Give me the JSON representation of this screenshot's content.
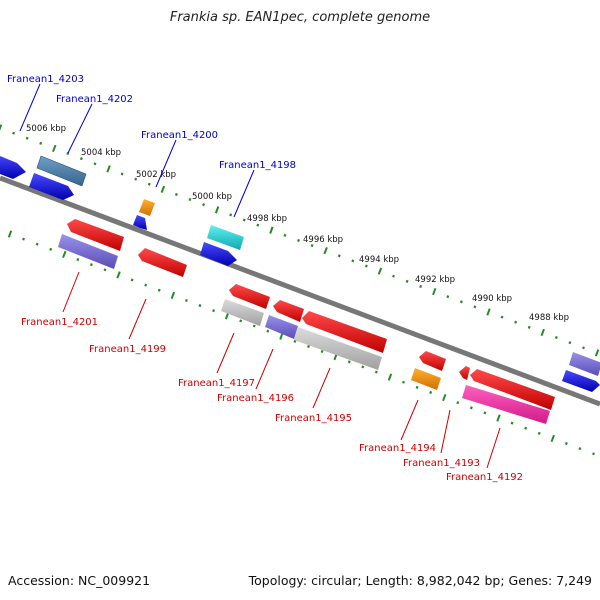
{
  "title": "Frankia sp. EAN1pec, complete genome",
  "footer": {
    "accession": "Accession: NC_009921",
    "summary": "Topology: circular; Length: 8,982,042 bp; Genes: 7,249"
  },
  "colors": {
    "top_label": "#0000cc",
    "bottom_label": "#cc0000",
    "backbone": "#777777",
    "ticks": "#228b22"
  },
  "scale_labels": [
    "5006 kbp",
    "5004 kbp",
    "5002 kbp",
    "5000 kbp",
    "4998 kbp",
    "4996 kbp",
    "4994 kbp",
    "4992 kbp",
    "4990 kbp",
    "4988 kbp"
  ],
  "top_genes": [
    {
      "label": "Franean1_4203"
    },
    {
      "label": "Franean1_4202"
    },
    {
      "label": "Franean1_4200"
    },
    {
      "label": "Franean1_4198"
    }
  ],
  "bottom_genes": [
    {
      "label": "Franean1_4201"
    },
    {
      "label": "Franean1_4199"
    },
    {
      "label": "Franean1_4197"
    },
    {
      "label": "Franean1_4196"
    },
    {
      "label": "Franean1_4195"
    },
    {
      "label": "Franean1_4194"
    },
    {
      "label": "Franean1_4193"
    },
    {
      "label": "Franean1_4192"
    }
  ]
}
